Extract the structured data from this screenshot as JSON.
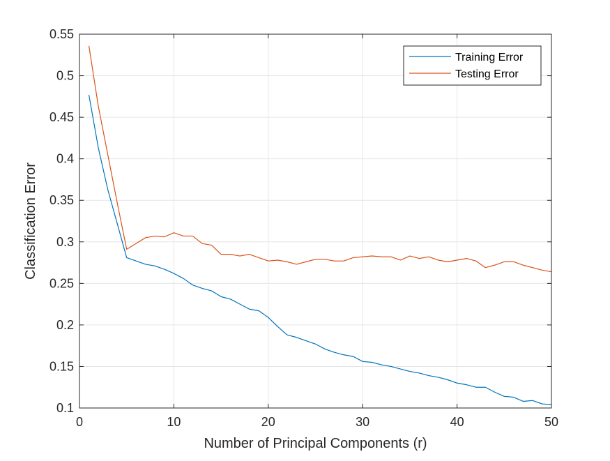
{
  "chart_data": {
    "type": "line",
    "title": "",
    "xlabel": "Number of Principal Components (r)",
    "ylabel": "Classification Error",
    "xlim": [
      0,
      50
    ],
    "ylim": [
      0.1,
      0.55
    ],
    "xticks": [
      0,
      10,
      20,
      30,
      40,
      50
    ],
    "xtick_labels": [
      "0",
      "10",
      "20",
      "30",
      "40",
      "50"
    ],
    "yticks": [
      0.1,
      0.15,
      0.2,
      0.25,
      0.3,
      0.35,
      0.4,
      0.45,
      0.5,
      0.55
    ],
    "ytick_labels": [
      "0.1",
      "0.15",
      "0.2",
      "0.25",
      "0.3",
      "0.35",
      "0.4",
      "0.45",
      "0.5",
      "0.55"
    ],
    "grid": true,
    "legend_position": "top-right",
    "x": [
      1,
      2,
      3,
      4,
      5,
      6,
      7,
      8,
      9,
      10,
      11,
      12,
      13,
      14,
      15,
      16,
      17,
      18,
      19,
      20,
      21,
      22,
      23,
      24,
      25,
      26,
      27,
      28,
      29,
      30,
      31,
      32,
      33,
      34,
      35,
      36,
      37,
      38,
      39,
      40,
      41,
      42,
      43,
      44,
      45,
      46,
      47,
      48,
      49,
      50
    ],
    "series": [
      {
        "name": "Training Error",
        "color": "#0072BD",
        "values": [
          0.477,
          0.413,
          0.363,
          0.322,
          0.281,
          0.277,
          0.273,
          0.271,
          0.267,
          0.262,
          0.256,
          0.248,
          0.244,
          0.241,
          0.234,
          0.231,
          0.225,
          0.219,
          0.217,
          0.209,
          0.198,
          0.188,
          0.185,
          0.181,
          0.177,
          0.171,
          0.167,
          0.164,
          0.162,
          0.156,
          0.155,
          0.152,
          0.15,
          0.147,
          0.144,
          0.142,
          0.139,
          0.137,
          0.134,
          0.13,
          0.128,
          0.125,
          0.125,
          0.119,
          0.114,
          0.113,
          0.108,
          0.109,
          0.105,
          0.104
        ]
      },
      {
        "name": "Testing Error",
        "color": "#D95319",
        "values": [
          0.536,
          0.463,
          0.405,
          0.347,
          0.291,
          0.298,
          0.305,
          0.307,
          0.306,
          0.311,
          0.307,
          0.307,
          0.298,
          0.296,
          0.285,
          0.285,
          0.283,
          0.285,
          0.281,
          0.277,
          0.278,
          0.276,
          0.273,
          0.276,
          0.279,
          0.279,
          0.277,
          0.277,
          0.281,
          0.282,
          0.283,
          0.282,
          0.282,
          0.278,
          0.283,
          0.28,
          0.282,
          0.278,
          0.276,
          0.278,
          0.28,
          0.277,
          0.269,
          0.272,
          0.276,
          0.276,
          0.272,
          0.269,
          0.266,
          0.264
        ]
      }
    ]
  }
}
